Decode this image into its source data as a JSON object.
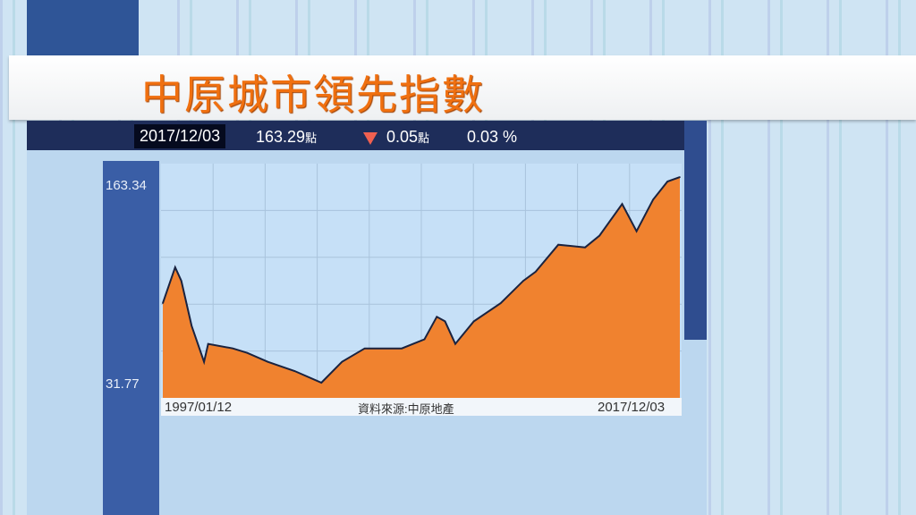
{
  "header": {
    "title": "中原城市領先指數"
  },
  "stats": {
    "date": "2017/12/03",
    "value": "163.29",
    "value_unit": "點",
    "change_direction": "down",
    "change": "0.05",
    "change_unit": "點",
    "change_pct": "0.03 %",
    "down_color": "#f06050"
  },
  "chart_data": {
    "type": "area",
    "title": "中原城市領先指數",
    "source": "資料來源:中原地產",
    "x_start_label": "1997/01/12",
    "x_end_label": "2017/12/03",
    "y_max_label": "163.34",
    "y_min_label": "31.77",
    "ylim": [
      31.77,
      163.34
    ],
    "grid": true,
    "fill_color": "#f0822f",
    "line_color": "#1a2340",
    "x": [
      "1997-01",
      "1997-07",
      "1997-10",
      "1998-03",
      "1998-09",
      "1998-11",
      "1999-11",
      "2000-06",
      "2001-04",
      "2002-05",
      "2003-06",
      "2004-04",
      "2005-03",
      "2006-09",
      "2007-08",
      "2008-02",
      "2008-06",
      "2008-11",
      "2009-08",
      "2010-09",
      "2011-08",
      "2012-02",
      "2013-01",
      "2014-02",
      "2014-09",
      "2015-08",
      "2016-03",
      "2016-11",
      "2017-06",
      "2017-12"
    ],
    "values": [
      83.3,
      106.1,
      97.5,
      69.0,
      46.1,
      57.5,
      54.6,
      51.8,
      46.1,
      40.3,
      32.9,
      46.1,
      54.6,
      54.6,
      60.4,
      74.7,
      71.8,
      57.5,
      71.8,
      83.3,
      97.5,
      103.3,
      120.4,
      118.7,
      126.2,
      146.2,
      129.0,
      149.0,
      160.5,
      163.29
    ]
  }
}
